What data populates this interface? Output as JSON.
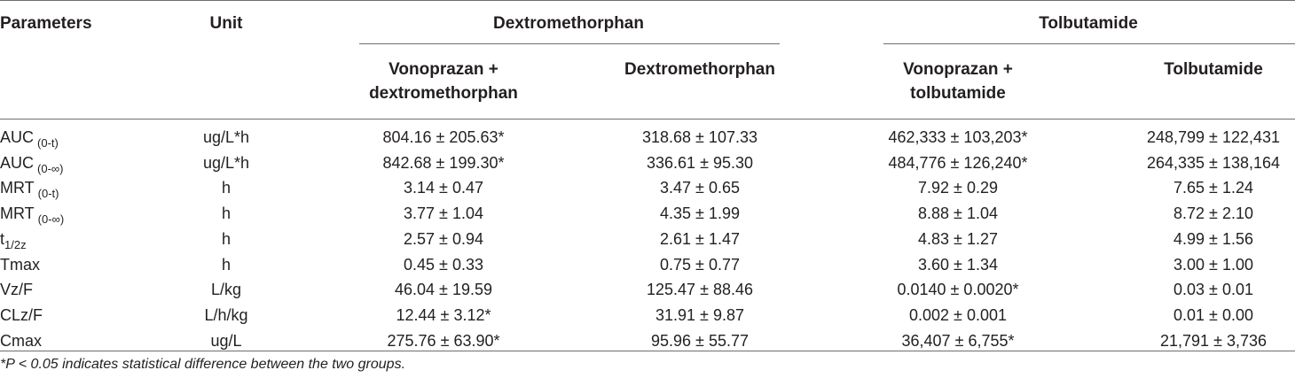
{
  "headers": {
    "parameters": "Parameters",
    "unit": "Unit",
    "group_dex": "Dextromethorphan",
    "group_tol": "Tolbutamide",
    "sub": [
      [
        "Vonoprazan +",
        "dextromethorphan"
      ],
      [
        "Dextromethorphan"
      ],
      [
        "Vonoprazan +",
        "tolbutamide"
      ],
      [
        "Tolbutamide"
      ]
    ]
  },
  "rows": [
    {
      "param": "AUC",
      "sub": "(0-t)",
      "unit": "ug/L*h",
      "v": [
        "804.16 ± 205.63*",
        "318.68 ± 107.33",
        "462,333 ± 103,203*",
        "248,799 ± 122,431"
      ]
    },
    {
      "param": "AUC",
      "sub": "(0-∞)",
      "unit": "ug/L*h",
      "v": [
        "842.68 ± 199.30*",
        "336.61 ± 95.30",
        "484,776 ± 126,240*",
        "264,335 ± 138,164"
      ]
    },
    {
      "param": "MRT",
      "sub": "(0-t)",
      "unit": "h",
      "v": [
        "3.14 ± 0.47",
        "3.47 ± 0.65",
        "7.92 ± 0.29",
        "7.65 ± 1.24"
      ]
    },
    {
      "param": "MRT",
      "sub": "(0-∞)",
      "unit": "h",
      "v": [
        "3.77 ± 1.04",
        "4.35 ± 1.99",
        "8.88 ± 1.04",
        "8.72 ± 2.10"
      ]
    },
    {
      "param": "t",
      "sub": "1/2z",
      "unit": "h",
      "v": [
        "2.57 ± 0.94",
        "2.61 ± 1.47",
        "4.83 ± 1.27",
        "4.99 ± 1.56"
      ]
    },
    {
      "param": "Tmax",
      "sub": "",
      "unit": "h",
      "v": [
        "0.45 ± 0.33",
        "0.75 ± 0.77",
        "3.60 ± 1.34",
        "3.00 ± 1.00"
      ]
    },
    {
      "param": "Vz/F",
      "sub": "",
      "unit": "L/kg",
      "v": [
        "46.04 ± 19.59",
        "125.47 ± 88.46",
        "0.0140 ± 0.0020*",
        "0.03 ± 0.01"
      ]
    },
    {
      "param": "CLz/F",
      "sub": "",
      "unit": "L/h/kg",
      "v": [
        "12.44 ± 3.12*",
        "31.91 ± 9.87",
        "0.002 ± 0.001",
        "0.01 ± 0.00"
      ]
    },
    {
      "param": "Cmax",
      "sub": "",
      "unit": "ug/L",
      "v": [
        "275.76 ± 63.90*",
        "95.96 ± 55.77",
        "36,407 ± 6,755*",
        "21,791 ± 3,736"
      ]
    }
  ],
  "footnote": "*P < 0.05 indicates statistical difference between the two groups."
}
